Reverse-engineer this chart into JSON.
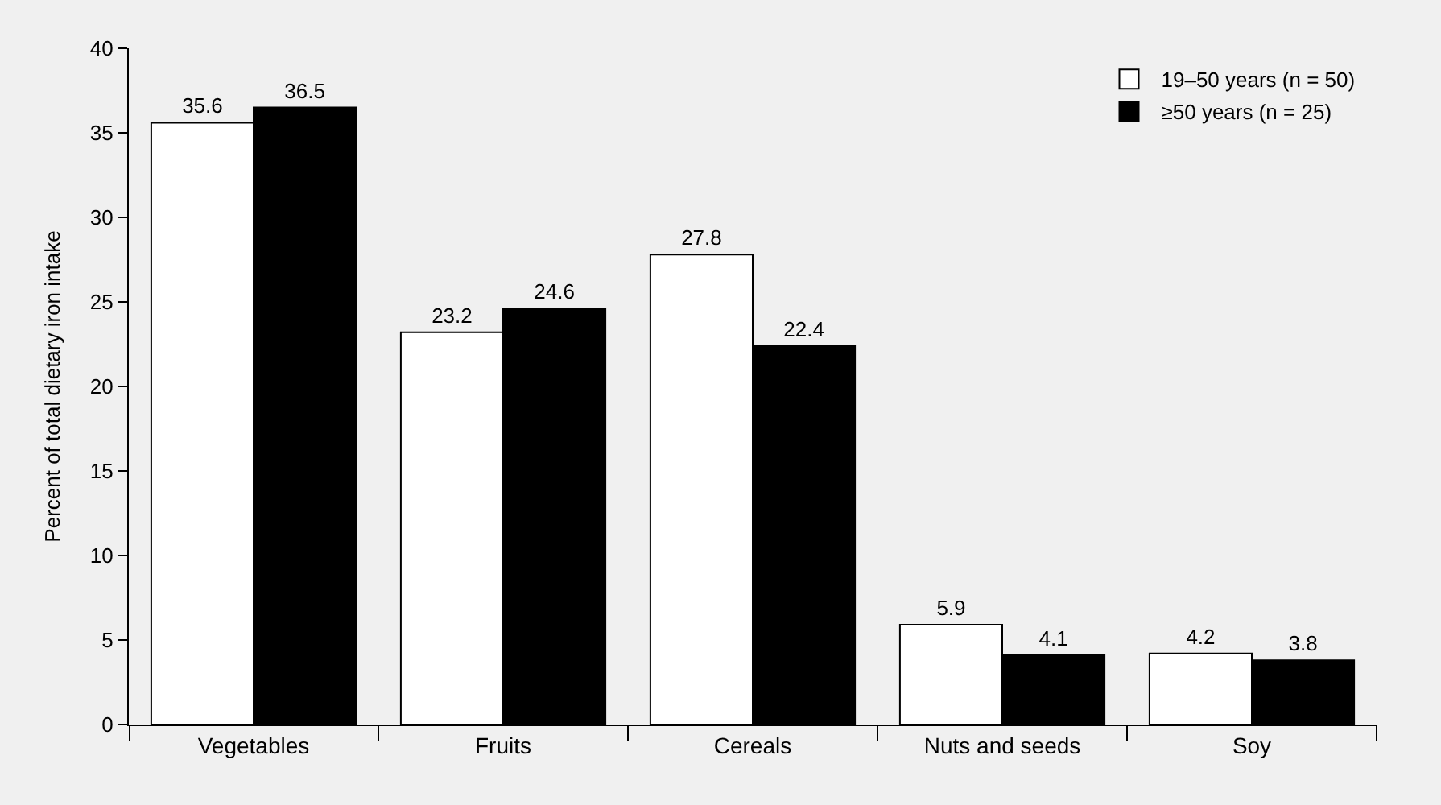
{
  "chart_data": {
    "type": "bar",
    "ylabel": "Percent of total dietary iron intake",
    "categories": [
      "Vegetables",
      "Fruits",
      "Cereals",
      "Nuts and seeds",
      "Soy"
    ],
    "series": [
      {
        "name": "19–50 years (n = 50)",
        "color": "#ffffff",
        "values": [
          35.6,
          23.2,
          27.8,
          5.9,
          4.2
        ]
      },
      {
        "name": "≥50 years (n = 25)",
        "color": "#000000",
        "values": [
          36.5,
          24.6,
          22.4,
          4.1,
          3.8
        ]
      }
    ],
    "ylim": [
      0,
      40
    ],
    "yticks": [
      0,
      5,
      10,
      15,
      20,
      25,
      30,
      35,
      40
    ],
    "data_labels": true,
    "grid": false,
    "legend": "top right"
  }
}
